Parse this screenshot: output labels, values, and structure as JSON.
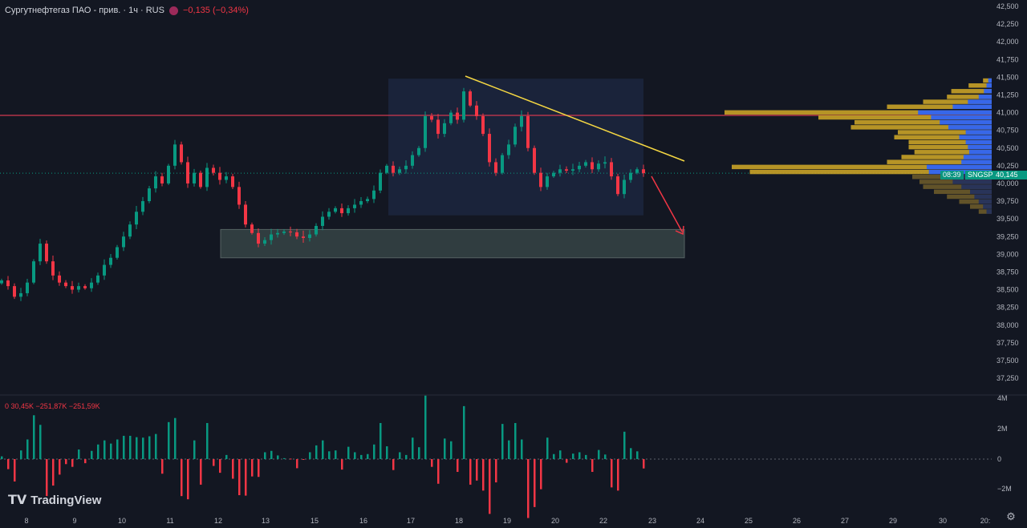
{
  "header": {
    "symbol_title": "Сургутнефтегаз ПАО - прив. · 1ч · RUS",
    "change": "−0,135 (−0,34%)"
  },
  "volume_legend": {
    "values": "0  30,45K  −251,87K  −251,59K"
  },
  "price_tag": {
    "ticker": "SNGSP",
    "price": "40,145",
    "countdown": "08:39"
  },
  "logo": {
    "text": "TradingView",
    "mark": "17"
  },
  "colors": {
    "up": "#089981",
    "down": "#f23645",
    "background": "#131722",
    "trendline": "#f5d742",
    "level": "#d1394f",
    "profile_up": "#2962ff",
    "profile_down": "#c9a227"
  },
  "chart_data": {
    "type": "candlestick",
    "title": "Сургутнефтегаз ПАО - прив. · 1ч · RUS",
    "ylim": [
      37250,
      42500
    ],
    "y_ticks": [
      "42,500",
      "42,250",
      "42,000",
      "41,750",
      "41,500",
      "41,250",
      "41,000",
      "40,750",
      "40,500",
      "40,250",
      "40,000",
      "39,750",
      "39,500",
      "39,250",
      "39,000",
      "38,750",
      "38,500",
      "38,250",
      "38,000",
      "37,750",
      "37,500",
      "37,250"
    ],
    "x_ticks": [
      "8",
      "9",
      "10",
      "11",
      "12",
      "13",
      "15",
      "16",
      "17",
      "18",
      "19",
      "20",
      "22",
      "23",
      "24",
      "25",
      "26",
      "27",
      "29",
      "30",
      "20:"
    ],
    "close": [
      38630,
      38550,
      38400,
      38450,
      38600,
      38900,
      39150,
      38900,
      38700,
      38600,
      38550,
      38500,
      38550,
      38520,
      38600,
      38700,
      38850,
      38950,
      39100,
      39250,
      39420,
      39600,
      39750,
      39930,
      40100,
      40000,
      40250,
      40550,
      40300,
      40000,
      40150,
      39950,
      40220,
      40150,
      40050,
      40100,
      39950,
      39700,
      39420,
      39300,
      39150,
      39200,
      39280,
      39300,
      39320,
      39310,
      39250,
      39230,
      39280,
      39400,
      39530,
      39600,
      39650,
      39580,
      39650,
      39700,
      39750,
      39780,
      39900,
      40150,
      40250,
      40150,
      40200,
      40250,
      40400,
      40500,
      40950,
      40900,
      40700,
      40850,
      41000,
      40900,
      41300,
      41100,
      40950,
      40700,
      40300,
      40150,
      40400,
      40550,
      40800,
      40950,
      40500,
      40150,
      39950,
      40100,
      40150,
      40200,
      40180,
      40200,
      40250,
      40300,
      40200,
      40280,
      40300,
      40100,
      39850,
      40050,
      40150,
      40200,
      40145
    ],
    "volume_axis": [
      "4M",
      "2M",
      "0",
      "−2M"
    ],
    "volume_range": [
      -3000000,
      4000000
    ],
    "annotations": {
      "resistance_level": 40950,
      "consolidation_box": [
        39550,
        41480
      ],
      "support_zone": [
        38950,
        39350
      ],
      "trendline": [
        [
          41520
        ],
        [
          40220
        ]
      ],
      "current_price": 40145
    },
    "volume_profile": [
      {
        "price": 41450,
        "up": 8,
        "down": 4
      },
      {
        "price": 41380,
        "up": 12,
        "down": 20
      },
      {
        "price": 41300,
        "up": 18,
        "down": 38
      },
      {
        "price": 41220,
        "up": 30,
        "down": 32
      },
      {
        "price": 41150,
        "up": 55,
        "down": 40
      },
      {
        "price": 41080,
        "up": 90,
        "down": 55
      },
      {
        "price": 41000,
        "up": 170,
        "down": 200
      },
      {
        "price": 40930,
        "up": 140,
        "down": 100
      },
      {
        "price": 40860,
        "up": 120,
        "down": 70
      },
      {
        "price": 40790,
        "up": 100,
        "down": 95
      },
      {
        "price": 40720,
        "up": 60,
        "down": 70
      },
      {
        "price": 40650,
        "up": 75,
        "down": 60
      },
      {
        "price": 40580,
        "up": 60,
        "down": 55
      },
      {
        "price": 40510,
        "up": 55,
        "down": 60
      },
      {
        "price": 40440,
        "up": 52,
        "down": 55
      },
      {
        "price": 40370,
        "up": 65,
        "down": 60
      },
      {
        "price": 40300,
        "up": 70,
        "down": 75
      },
      {
        "price": 40230,
        "up": 150,
        "down": 210
      },
      {
        "price": 40160,
        "up": 145,
        "down": 190
      },
      {
        "price": 40090,
        "up": 110,
        "down": 0
      },
      {
        "price": 40020,
        "up": 90,
        "down": 10
      },
      {
        "price": 39950,
        "up": 70,
        "down": 25
      },
      {
        "price": 39880,
        "up": 50,
        "down": 30
      },
      {
        "price": 39810,
        "up": 40,
        "down": 22
      },
      {
        "price": 39740,
        "up": 30,
        "down": 15
      },
      {
        "price": 39670,
        "up": 20,
        "down": 10
      },
      {
        "price": 39600,
        "up": 12,
        "down": 6
      }
    ]
  }
}
